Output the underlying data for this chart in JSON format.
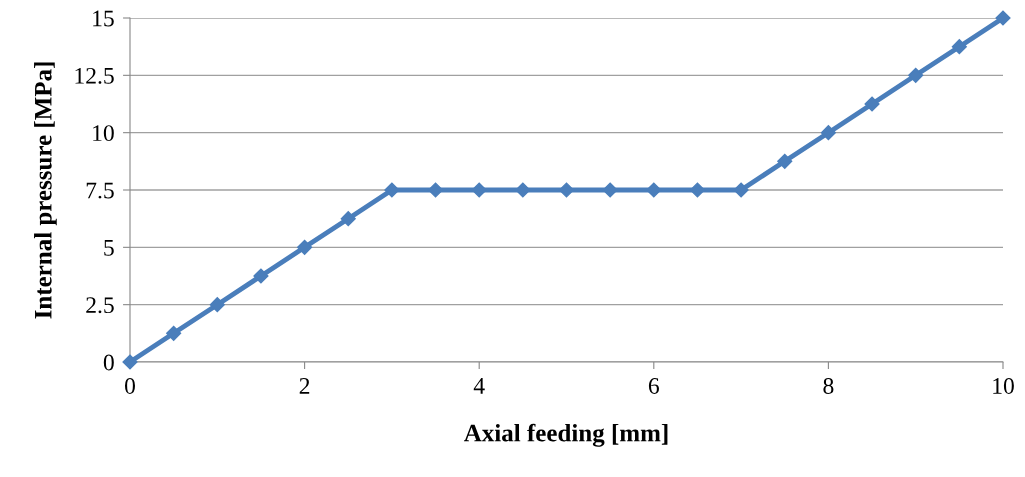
{
  "chart_data": {
    "type": "line",
    "xlabel": "Axial feeding [mm]",
    "ylabel": "Internal pressure [MPa]",
    "x": [
      0,
      0.5,
      1,
      1.5,
      2,
      2.5,
      3,
      3.5,
      4,
      4.5,
      5,
      5.5,
      6,
      6.5,
      7,
      7.5,
      8,
      8.5,
      9,
      9.5,
      10
    ],
    "series": [
      {
        "color": "#4a7ebb",
        "values": [
          0,
          1.25,
          2.5,
          3.75,
          5,
          6.25,
          7.5,
          7.5,
          7.5,
          7.5,
          7.5,
          7.5,
          7.5,
          7.5,
          7.5,
          8.75,
          10,
          11.25,
          12.5,
          13.75,
          15
        ]
      }
    ],
    "xlim": [
      0,
      10
    ],
    "xticks": [
      0,
      2,
      4,
      6,
      8,
      10
    ],
    "ylim": [
      0,
      15
    ],
    "yticks": [
      0,
      2.5,
      5,
      7.5,
      10,
      12.5,
      15
    ],
    "grid": "y",
    "marker": "diamond",
    "line_style": "solid"
  }
}
